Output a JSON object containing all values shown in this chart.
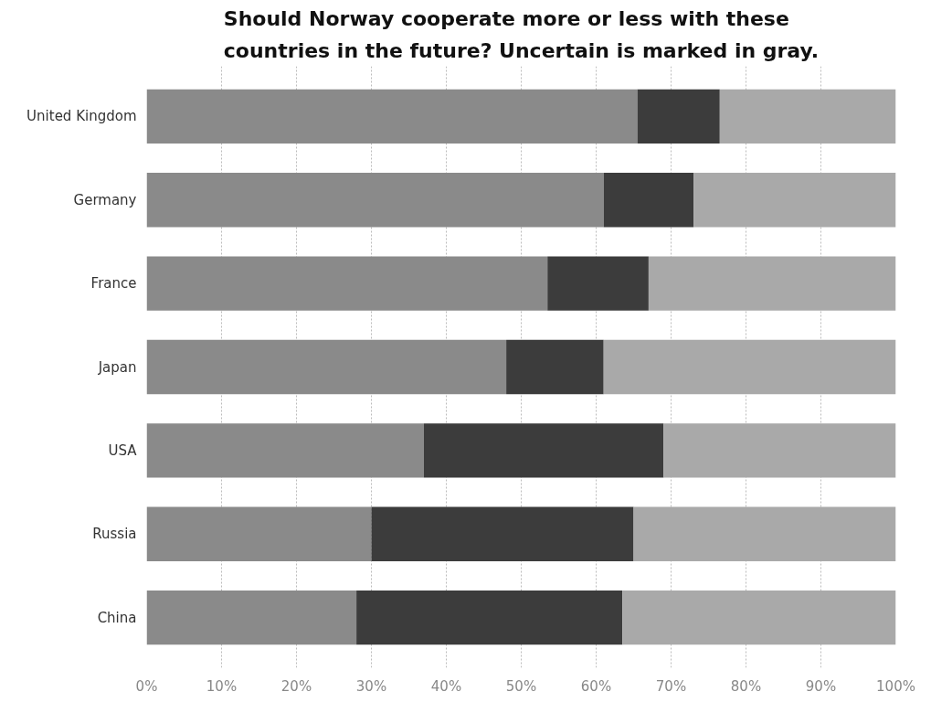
{
  "chart_data": {
    "type": "bar",
    "orientation": "horizontal",
    "stacked": true,
    "title": "Should Norway cooperate more or less with these\ncountries in the future? Uncertain is marked in gray.",
    "categories": [
      "United Kingdom",
      "Germany",
      "France",
      "Japan",
      "USA",
      "Russia",
      "China"
    ],
    "series": [
      {
        "color": "#8a8a8a",
        "values": [
          65.5,
          61,
          53.5,
          48,
          37,
          30,
          28
        ]
      },
      {
        "color": "#3c3c3c",
        "values": [
          11,
          12,
          13.5,
          13,
          32,
          35,
          35.5
        ]
      },
      {
        "color": "#a9a9a9",
        "values": [
          23.5,
          27,
          33,
          39,
          31,
          35,
          36.5
        ]
      }
    ],
    "xlim": [
      0,
      100
    ],
    "xticks": [
      {
        "value": 0,
        "label": "0%"
      },
      {
        "value": 10,
        "label": "10%"
      },
      {
        "value": 20,
        "label": "20%"
      },
      {
        "value": 30,
        "label": "30%"
      },
      {
        "value": 40,
        "label": "40%"
      },
      {
        "value": 50,
        "label": "50%"
      },
      {
        "value": 60,
        "label": "60%"
      },
      {
        "value": 70,
        "label": "70%"
      },
      {
        "value": 80,
        "label": "80%"
      },
      {
        "value": 90,
        "label": "90%"
      },
      {
        "value": 100,
        "label": "100%"
      }
    ],
    "grid": "x"
  }
}
